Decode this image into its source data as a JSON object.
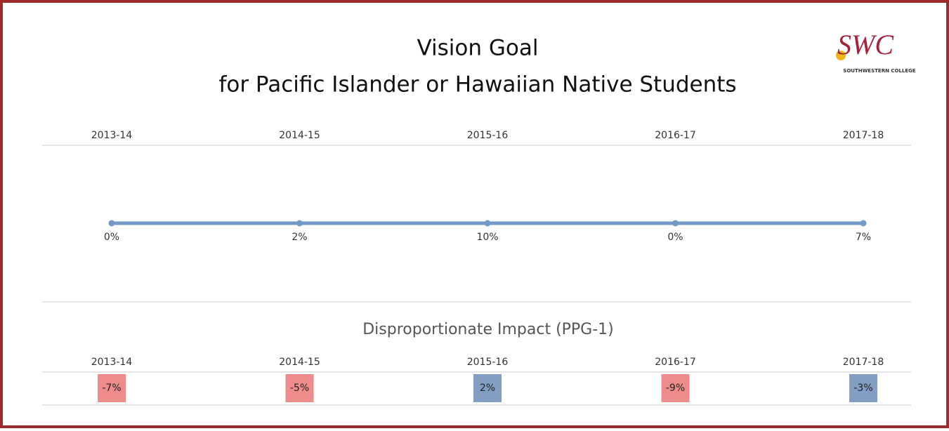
{
  "header": {
    "title": "Vision Goal",
    "subtitle": "for Pacific Islander or Hawaiian Native Students"
  },
  "logo": {
    "text": "SWC",
    "caption": "SOUTHWESTERN COLLEGE"
  },
  "chart_data": [
    {
      "type": "line",
      "categories": [
        "2013-14",
        "2014-15",
        "2015-16",
        "2016-17",
        "2017-18"
      ],
      "values": [
        0,
        2,
        10,
        0,
        7
      ],
      "value_labels": [
        "0%",
        "2%",
        "10%",
        "0%",
        "7%"
      ],
      "color": "#7399c6"
    },
    {
      "type": "highlight-table",
      "title": "Disproportionate Impact (PPG-1)",
      "categories": [
        "2013-14",
        "2014-15",
        "2015-16",
        "2016-17",
        "2017-18"
      ],
      "values": [
        -7,
        -5,
        2,
        -9,
        -3
      ],
      "value_labels": [
        "-7%",
        "-5%",
        "2%",
        "-9%",
        "-3%"
      ],
      "colors": [
        "#ee8b8b",
        "#ee8b8b",
        "#819fc3",
        "#ee8b8b",
        "#819fc3"
      ]
    }
  ]
}
